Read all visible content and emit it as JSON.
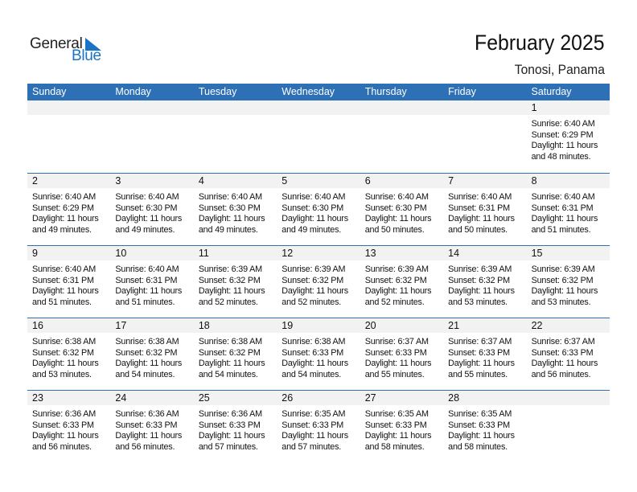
{
  "logo": {
    "word1": "General",
    "word2": "Blue"
  },
  "title": "February 2025",
  "location": "Tonosi, Panama",
  "colors": {
    "header": "#2e70b6",
    "logo_blue": "#1a73c4",
    "band": "#f2f2f2"
  },
  "weekdays": [
    "Sunday",
    "Monday",
    "Tuesday",
    "Wednesday",
    "Thursday",
    "Friday",
    "Saturday"
  ],
  "weeks": [
    [
      null,
      null,
      null,
      null,
      null,
      null,
      {
        "day": "1",
        "sunrise": "Sunrise: 6:40 AM",
        "sunset": "Sunset: 6:29 PM",
        "daylight1": "Daylight: 11 hours",
        "daylight2": "and 48 minutes."
      }
    ],
    [
      {
        "day": "2",
        "sunrise": "Sunrise: 6:40 AM",
        "sunset": "Sunset: 6:29 PM",
        "daylight1": "Daylight: 11 hours",
        "daylight2": "and 49 minutes."
      },
      {
        "day": "3",
        "sunrise": "Sunrise: 6:40 AM",
        "sunset": "Sunset: 6:30 PM",
        "daylight1": "Daylight: 11 hours",
        "daylight2": "and 49 minutes."
      },
      {
        "day": "4",
        "sunrise": "Sunrise: 6:40 AM",
        "sunset": "Sunset: 6:30 PM",
        "daylight1": "Daylight: 11 hours",
        "daylight2": "and 49 minutes."
      },
      {
        "day": "5",
        "sunrise": "Sunrise: 6:40 AM",
        "sunset": "Sunset: 6:30 PM",
        "daylight1": "Daylight: 11 hours",
        "daylight2": "and 49 minutes."
      },
      {
        "day": "6",
        "sunrise": "Sunrise: 6:40 AM",
        "sunset": "Sunset: 6:30 PM",
        "daylight1": "Daylight: 11 hours",
        "daylight2": "and 50 minutes."
      },
      {
        "day": "7",
        "sunrise": "Sunrise: 6:40 AM",
        "sunset": "Sunset: 6:31 PM",
        "daylight1": "Daylight: 11 hours",
        "daylight2": "and 50 minutes."
      },
      {
        "day": "8",
        "sunrise": "Sunrise: 6:40 AM",
        "sunset": "Sunset: 6:31 PM",
        "daylight1": "Daylight: 11 hours",
        "daylight2": "and 51 minutes."
      }
    ],
    [
      {
        "day": "9",
        "sunrise": "Sunrise: 6:40 AM",
        "sunset": "Sunset: 6:31 PM",
        "daylight1": "Daylight: 11 hours",
        "daylight2": "and 51 minutes."
      },
      {
        "day": "10",
        "sunrise": "Sunrise: 6:40 AM",
        "sunset": "Sunset: 6:31 PM",
        "daylight1": "Daylight: 11 hours",
        "daylight2": "and 51 minutes."
      },
      {
        "day": "11",
        "sunrise": "Sunrise: 6:39 AM",
        "sunset": "Sunset: 6:32 PM",
        "daylight1": "Daylight: 11 hours",
        "daylight2": "and 52 minutes."
      },
      {
        "day": "12",
        "sunrise": "Sunrise: 6:39 AM",
        "sunset": "Sunset: 6:32 PM",
        "daylight1": "Daylight: 11 hours",
        "daylight2": "and 52 minutes."
      },
      {
        "day": "13",
        "sunrise": "Sunrise: 6:39 AM",
        "sunset": "Sunset: 6:32 PM",
        "daylight1": "Daylight: 11 hours",
        "daylight2": "and 52 minutes."
      },
      {
        "day": "14",
        "sunrise": "Sunrise: 6:39 AM",
        "sunset": "Sunset: 6:32 PM",
        "daylight1": "Daylight: 11 hours",
        "daylight2": "and 53 minutes."
      },
      {
        "day": "15",
        "sunrise": "Sunrise: 6:39 AM",
        "sunset": "Sunset: 6:32 PM",
        "daylight1": "Daylight: 11 hours",
        "daylight2": "and 53 minutes."
      }
    ],
    [
      {
        "day": "16",
        "sunrise": "Sunrise: 6:38 AM",
        "sunset": "Sunset: 6:32 PM",
        "daylight1": "Daylight: 11 hours",
        "daylight2": "and 53 minutes."
      },
      {
        "day": "17",
        "sunrise": "Sunrise: 6:38 AM",
        "sunset": "Sunset: 6:32 PM",
        "daylight1": "Daylight: 11 hours",
        "daylight2": "and 54 minutes."
      },
      {
        "day": "18",
        "sunrise": "Sunrise: 6:38 AM",
        "sunset": "Sunset: 6:32 PM",
        "daylight1": "Daylight: 11 hours",
        "daylight2": "and 54 minutes."
      },
      {
        "day": "19",
        "sunrise": "Sunrise: 6:38 AM",
        "sunset": "Sunset: 6:33 PM",
        "daylight1": "Daylight: 11 hours",
        "daylight2": "and 54 minutes."
      },
      {
        "day": "20",
        "sunrise": "Sunrise: 6:37 AM",
        "sunset": "Sunset: 6:33 PM",
        "daylight1": "Daylight: 11 hours",
        "daylight2": "and 55 minutes."
      },
      {
        "day": "21",
        "sunrise": "Sunrise: 6:37 AM",
        "sunset": "Sunset: 6:33 PM",
        "daylight1": "Daylight: 11 hours",
        "daylight2": "and 55 minutes."
      },
      {
        "day": "22",
        "sunrise": "Sunrise: 6:37 AM",
        "sunset": "Sunset: 6:33 PM",
        "daylight1": "Daylight: 11 hours",
        "daylight2": "and 56 minutes."
      }
    ],
    [
      {
        "day": "23",
        "sunrise": "Sunrise: 6:36 AM",
        "sunset": "Sunset: 6:33 PM",
        "daylight1": "Daylight: 11 hours",
        "daylight2": "and 56 minutes."
      },
      {
        "day": "24",
        "sunrise": "Sunrise: 6:36 AM",
        "sunset": "Sunset: 6:33 PM",
        "daylight1": "Daylight: 11 hours",
        "daylight2": "and 56 minutes."
      },
      {
        "day": "25",
        "sunrise": "Sunrise: 6:36 AM",
        "sunset": "Sunset: 6:33 PM",
        "daylight1": "Daylight: 11 hours",
        "daylight2": "and 57 minutes."
      },
      {
        "day": "26",
        "sunrise": "Sunrise: 6:35 AM",
        "sunset": "Sunset: 6:33 PM",
        "daylight1": "Daylight: 11 hours",
        "daylight2": "and 57 minutes."
      },
      {
        "day": "27",
        "sunrise": "Sunrise: 6:35 AM",
        "sunset": "Sunset: 6:33 PM",
        "daylight1": "Daylight: 11 hours",
        "daylight2": "and 58 minutes."
      },
      {
        "day": "28",
        "sunrise": "Sunrise: 6:35 AM",
        "sunset": "Sunset: 6:33 PM",
        "daylight1": "Daylight: 11 hours",
        "daylight2": "and 58 minutes."
      },
      null
    ]
  ]
}
